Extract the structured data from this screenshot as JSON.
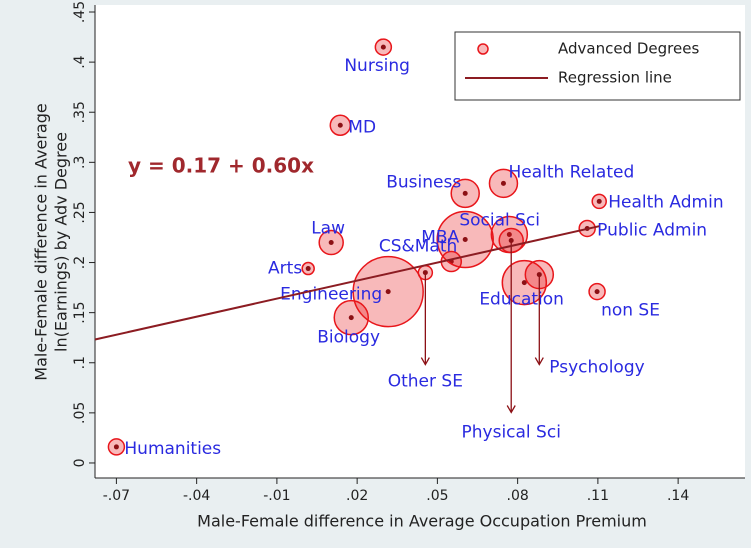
{
  "chart_data": {
    "type": "scatter",
    "x_label": "Male-Female difference in Average Occupation Premium",
    "y_label": [
      "Male-Female difference in Average",
      "ln(Earnings) by Adv Degree"
    ],
    "xlim": [
      -0.078,
      0.165
    ],
    "ylim": [
      -0.015,
      0.457
    ],
    "xticks": [
      {
        "value": -0.07,
        "label": "-.07"
      },
      {
        "value": -0.04,
        "label": "-.04"
      },
      {
        "value": -0.01,
        "label": "-.01"
      },
      {
        "value": 0.02,
        "label": ".02"
      },
      {
        "value": 0.05,
        "label": ".05"
      },
      {
        "value": 0.08,
        "label": ".08"
      },
      {
        "value": 0.11,
        "label": ".11"
      },
      {
        "value": 0.14,
        "label": ".14"
      }
    ],
    "yticks": [
      0,
      {
        "value": 0.05,
        "label": ".05"
      },
      {
        "value": 0.1,
        "label": ".1"
      },
      {
        "value": 0.15,
        "label": ".15"
      },
      {
        "value": 0.2,
        "label": ".2"
      },
      {
        "value": 0.25,
        "label": ".25"
      },
      {
        "value": 0.3,
        "label": ".3"
      },
      {
        "value": 0.35,
        "label": ".35"
      },
      {
        "value": 0.4,
        "label": ".4"
      },
      {
        "value": 0.45,
        "label": ".45"
      }
    ],
    "series": [
      {
        "name": "Advanced Degrees",
        "color": "#e8161b",
        "labels": [
          "Humanities",
          "Arts",
          "Law",
          "MD",
          "Nursing",
          "Engineering",
          "Biology",
          "Other SE",
          "CS&Math",
          "MBA",
          "Business",
          "Social Sci",
          "Health Related",
          "Physical Sci",
          "Education",
          "Psychology",
          "Health Admin",
          "Public Admin",
          "non SE"
        ],
        "x": [
          -0.07,
          0.0017,
          0.0103,
          0.0137,
          0.0298,
          0.0316,
          0.0178,
          0.0455,
          0.0552,
          0.0604,
          0.0604,
          0.0769,
          0.0747,
          0.0776,
          0.0825,
          0.0881,
          0.1105,
          0.106,
          0.1097
        ],
        "values": [
          0.016,
          0.194,
          0.22,
          0.337,
          0.415,
          0.171,
          0.145,
          0.19,
          0.201,
          0.223,
          0.269,
          0.228,
          0.279,
          0.222,
          0.18,
          0.188,
          0.261,
          0.234,
          0.171
        ],
        "sizes": [
          64,
          36,
          144,
          100,
          64,
          1225,
          289,
          49,
          100,
          784,
          196,
          324,
          196,
          144,
          484,
          196,
          49,
          64,
          64
        ]
      },
      {
        "name": "Regression line",
        "color": "#8c1c22",
        "intercept": 0.17,
        "slope": 0.6,
        "equation": "y = 0.17 + 0.60x"
      }
    ]
  }
}
